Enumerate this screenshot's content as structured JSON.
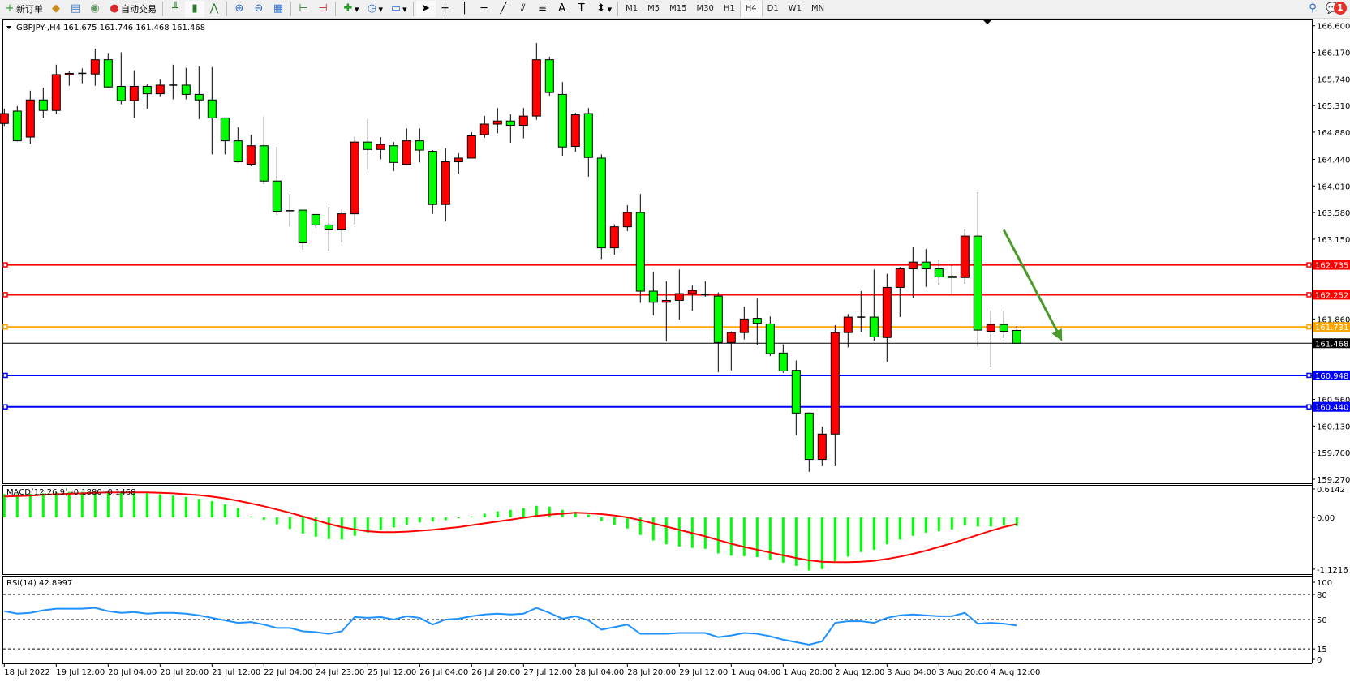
{
  "toolbar": {
    "new_order": "新订单",
    "auto_trading": "自动交易",
    "icons": [
      "new-order-icon",
      "market-watch-icon",
      "navigator-icon",
      "signals-icon",
      "auto-trading-icon",
      "bar-chart-icon",
      "candlestick-icon",
      "line-chart-icon",
      "zoom-in-icon",
      "zoom-out-icon",
      "tile-windows-icon",
      "autoscroll-icon",
      "chart-shift-icon",
      "indicators-icon",
      "periods-icon",
      "templates-icon",
      "cursor-icon",
      "crosshair-icon",
      "vertical-line-icon",
      "horizontal-line-icon",
      "trendline-icon",
      "fibonacci-expansion-icon",
      "fibonacci-fan-icon",
      "text-icon",
      "text-label-icon",
      "arrows-icon",
      "search-icon",
      "chat-icon"
    ],
    "timeframes": [
      "M1",
      "M5",
      "M15",
      "M30",
      "H1",
      "H4",
      "D1",
      "W1",
      "MN"
    ],
    "active_timeframe": "H4",
    "notifications": "1"
  },
  "chart_data": {
    "type": "candlestick",
    "symbol_header": "GBPJPY-,H4  161.675 161.746 161.468 161.468",
    "up_color": "#ff0000",
    "down_color": "#00ff00",
    "price_ticks": [
      "166.600",
      "166.170",
      "165.740",
      "165.310",
      "164.880",
      "164.440",
      "164.010",
      "163.580",
      "163.150",
      "161.860",
      "160.560",
      "160.130",
      "159.700",
      "159.270"
    ],
    "price_tick_values": [
      166.6,
      166.17,
      165.74,
      165.31,
      164.88,
      164.44,
      164.01,
      163.58,
      163.15,
      161.86,
      160.56,
      160.13,
      159.7,
      159.27
    ],
    "ylim": [
      159.27,
      166.6
    ],
    "time_labels": [
      "18 Jul 2022",
      "19 Jul 12:00",
      "20 Jul 04:00",
      "20 Jul 20:00",
      "21 Jul 12:00",
      "22 Jul 04:00",
      "24 Jul 23:00",
      "25 Jul 12:00",
      "26 Jul 04:00",
      "26 Jul 20:00",
      "27 Jul 12:00",
      "28 Jul 04:00",
      "28 Jul 20:00",
      "29 Jul 12:00",
      "1 Aug 04:00",
      "1 Aug 20:00",
      "2 Aug 12:00",
      "3 Aug 04:00",
      "3 Aug 20:00",
      "4 Aug 12:00"
    ],
    "candles": [
      [
        165.02,
        165.26,
        164.98,
        165.18
      ],
      [
        165.22,
        165.3,
        164.73,
        164.74
      ],
      [
        164.8,
        165.55,
        164.69,
        165.4
      ],
      [
        165.4,
        165.6,
        165.11,
        165.23
      ],
      [
        165.23,
        165.97,
        165.17,
        165.81
      ],
      [
        165.81,
        165.86,
        165.63,
        165.83
      ],
      [
        165.83,
        165.91,
        165.67,
        165.83
      ],
      [
        165.82,
        166.23,
        165.63,
        166.05
      ],
      [
        166.05,
        166.16,
        165.6,
        165.61
      ],
      [
        165.62,
        166.17,
        165.33,
        165.39
      ],
      [
        165.39,
        165.88,
        165.11,
        165.62
      ],
      [
        165.62,
        165.65,
        165.26,
        165.5
      ],
      [
        165.5,
        165.73,
        165.46,
        165.64
      ],
      [
        165.64,
        165.97,
        165.41,
        165.63
      ],
      [
        165.64,
        165.92,
        165.41,
        165.49
      ],
      [
        165.49,
        165.94,
        165.09,
        165.4
      ],
      [
        165.4,
        165.93,
        164.52,
        165.11
      ],
      [
        165.11,
        165.11,
        164.52,
        164.74
      ],
      [
        164.74,
        164.96,
        164.39,
        164.4
      ],
      [
        164.36,
        164.84,
        164.33,
        164.66
      ],
      [
        164.66,
        165.13,
        164.04,
        164.09
      ],
      [
        164.09,
        164.64,
        163.55,
        163.6
      ],
      [
        163.61,
        163.88,
        163.35,
        163.6
      ],
      [
        163.62,
        163.62,
        162.98,
        163.09
      ],
      [
        163.55,
        163.55,
        163.34,
        163.38
      ],
      [
        163.38,
        163.67,
        162.96,
        163.3
      ],
      [
        163.3,
        163.63,
        163.09,
        163.56
      ],
      [
        163.56,
        164.81,
        163.39,
        164.72
      ],
      [
        164.72,
        165.08,
        164.27,
        164.6
      ],
      [
        164.6,
        164.8,
        164.44,
        164.68
      ],
      [
        164.66,
        164.72,
        164.25,
        164.39
      ],
      [
        164.36,
        164.94,
        164.35,
        164.74
      ],
      [
        164.74,
        164.94,
        164.39,
        164.59
      ],
      [
        164.57,
        164.59,
        163.56,
        163.71
      ],
      [
        163.71,
        164.62,
        163.44,
        164.4
      ],
      [
        164.4,
        164.54,
        164.21,
        164.46
      ],
      [
        164.46,
        164.88,
        164.46,
        164.82
      ],
      [
        164.84,
        165.14,
        164.79,
        165.01
      ],
      [
        165.01,
        165.27,
        164.86,
        165.06
      ],
      [
        165.06,
        165.17,
        164.71,
        164.99
      ],
      [
        164.99,
        165.27,
        164.78,
        165.14
      ],
      [
        165.14,
        166.32,
        165.08,
        166.05
      ],
      [
        166.05,
        166.1,
        165.47,
        165.52
      ],
      [
        165.49,
        165.69,
        164.5,
        164.64
      ],
      [
        164.65,
        165.19,
        164.56,
        165.16
      ],
      [
        165.18,
        165.27,
        164.16,
        164.47
      ],
      [
        164.46,
        164.52,
        162.83,
        163.01
      ],
      [
        163.01,
        163.39,
        162.9,
        163.35
      ],
      [
        163.35,
        163.7,
        163.28,
        163.58
      ],
      [
        163.58,
        163.88,
        162.12,
        162.31
      ],
      [
        162.31,
        162.62,
        161.92,
        162.13
      ],
      [
        162.13,
        162.47,
        161.5,
        162.16
      ],
      [
        162.16,
        162.66,
        161.85,
        162.27
      ],
      [
        162.27,
        162.4,
        161.99,
        162.32
      ],
      [
        162.25,
        162.47,
        162.22,
        162.25
      ],
      [
        162.23,
        162.29,
        161.0,
        161.48
      ],
      [
        161.48,
        161.66,
        161.03,
        161.64
      ],
      [
        161.64,
        162.06,
        161.53,
        161.86
      ],
      [
        161.87,
        162.19,
        161.44,
        161.79
      ],
      [
        161.78,
        161.9,
        161.26,
        161.3
      ],
      [
        161.31,
        161.45,
        160.99,
        161.02
      ],
      [
        161.03,
        161.19,
        159.98,
        160.34
      ],
      [
        160.34,
        160.35,
        159.39,
        159.59
      ],
      [
        159.59,
        160.12,
        159.48,
        160.0
      ],
      [
        160.0,
        161.76,
        159.48,
        161.64
      ],
      [
        161.64,
        161.94,
        161.4,
        161.89
      ],
      [
        161.89,
        162.31,
        161.65,
        161.88
      ],
      [
        161.89,
        162.66,
        161.51,
        161.57
      ],
      [
        161.56,
        162.59,
        161.17,
        162.37
      ],
      [
        162.37,
        162.7,
        161.89,
        162.67
      ],
      [
        162.67,
        163.03,
        162.2,
        162.78
      ],
      [
        162.78,
        162.99,
        162.38,
        162.67
      ],
      [
        162.67,
        162.82,
        162.41,
        162.54
      ],
      [
        162.55,
        162.73,
        162.25,
        162.53
      ],
      [
        162.53,
        163.31,
        162.43,
        163.2
      ],
      [
        163.2,
        163.91,
        161.41,
        161.68
      ],
      [
        161.66,
        162.0,
        161.08,
        161.77
      ],
      [
        161.77,
        161.99,
        161.55,
        161.66
      ],
      [
        161.675,
        161.746,
        161.468,
        161.468
      ]
    ],
    "horizontal_lines": [
      {
        "price": 162.735,
        "label": "162.735",
        "color": "#ff0000"
      },
      {
        "price": 162.252,
        "label": "162.252",
        "color": "#ff0000"
      },
      {
        "price": 161.731,
        "label": "161.731",
        "color": "#ffa500"
      },
      {
        "price": 160.948,
        "label": "160.948",
        "color": "#0000ff"
      },
      {
        "price": 160.44,
        "label": "160.440",
        "color": "#0000ff"
      }
    ],
    "bid_line": {
      "price": 161.468,
      "label": "161.468",
      "color": "#000000"
    },
    "arrow": {
      "color": "#4c9a2a",
      "from": {
        "bar": 77,
        "price": 163.3
      },
      "to": {
        "bar": 81.5,
        "price": 161.5
      }
    },
    "macd": {
      "header": "MACD(12,26,9) -0.1880 -0.1468",
      "ticks": [
        "0.6142",
        "0.00",
        "-1.1216"
      ],
      "tick_values": [
        0.6142,
        0,
        -1.1216
      ],
      "histogram_color": "#00ff00",
      "signal_color": "#ff0000",
      "histogram": [
        0.5,
        0.5,
        0.51,
        0.52,
        0.54,
        0.55,
        0.55,
        0.56,
        0.56,
        0.55,
        0.54,
        0.52,
        0.5,
        0.47,
        0.44,
        0.4,
        0.35,
        0.28,
        0.2,
        0.02,
        -0.05,
        -0.15,
        -0.25,
        -0.35,
        -0.42,
        -0.47,
        -0.48,
        -0.4,
        -0.33,
        -0.27,
        -0.22,
        -0.16,
        -0.11,
        -0.09,
        -0.06,
        -0.02,
        0.02,
        0.08,
        0.13,
        0.16,
        0.2,
        0.25,
        0.23,
        0.16,
        0.12,
        0.06,
        -0.08,
        -0.17,
        -0.24,
        -0.38,
        -0.5,
        -0.58,
        -0.63,
        -0.66,
        -0.68,
        -0.78,
        -0.83,
        -0.84,
        -0.86,
        -0.92,
        -0.98,
        -1.05,
        -1.15,
        -1.12,
        -0.95,
        -0.85,
        -0.75,
        -0.7,
        -0.58,
        -0.48,
        -0.4,
        -0.33,
        -0.3,
        -0.26,
        -0.18,
        -0.2,
        -0.2,
        -0.18,
        -0.188
      ],
      "signal": [
        0.45,
        0.46,
        0.47,
        0.49,
        0.5,
        0.51,
        0.52,
        0.53,
        0.54,
        0.54,
        0.54,
        0.54,
        0.53,
        0.52,
        0.5,
        0.48,
        0.45,
        0.41,
        0.36,
        0.3,
        0.24,
        0.17,
        0.1,
        0.02,
        -0.06,
        -0.14,
        -0.21,
        -0.26,
        -0.3,
        -0.32,
        -0.32,
        -0.31,
        -0.29,
        -0.27,
        -0.24,
        -0.21,
        -0.17,
        -0.13,
        -0.09,
        -0.05,
        -0.01,
        0.03,
        0.06,
        0.08,
        0.1,
        0.09,
        0.07,
        0.04,
        0.0,
        -0.06,
        -0.13,
        -0.2,
        -0.27,
        -0.34,
        -0.41,
        -0.49,
        -0.57,
        -0.64,
        -0.7,
        -0.76,
        -0.82,
        -0.88,
        -0.93,
        -0.96,
        -0.97,
        -0.97,
        -0.96,
        -0.94,
        -0.9,
        -0.85,
        -0.79,
        -0.72,
        -0.64,
        -0.56,
        -0.47,
        -0.38,
        -0.29,
        -0.21,
        -0.1468
      ]
    },
    "rsi": {
      "header": "RSI(14) 42.8997",
      "ticks": [
        "100",
        "80",
        "50",
        "15",
        "0"
      ],
      "tick_values": [
        100,
        80,
        50,
        15,
        0
      ],
      "levels": [
        80,
        50,
        15
      ],
      "color": "#1e90ff",
      "values": [
        60,
        57,
        58,
        61,
        63,
        63,
        63,
        64,
        60,
        58,
        59,
        57,
        58,
        58,
        57,
        55,
        52,
        49,
        46,
        47,
        44,
        40,
        40,
        36,
        35,
        33,
        36,
        53,
        52,
        53,
        50,
        54,
        52,
        44,
        50,
        51,
        54,
        56,
        57,
        56,
        57,
        64,
        58,
        51,
        54,
        49,
        38,
        41,
        44,
        33,
        33,
        33,
        34,
        34,
        34,
        29,
        31,
        34,
        33,
        30,
        26,
        23,
        20,
        24,
        46,
        48,
        48,
        46,
        52,
        55,
        56,
        55,
        54,
        54,
        58,
        45,
        46,
        45,
        42.9
      ]
    }
  }
}
